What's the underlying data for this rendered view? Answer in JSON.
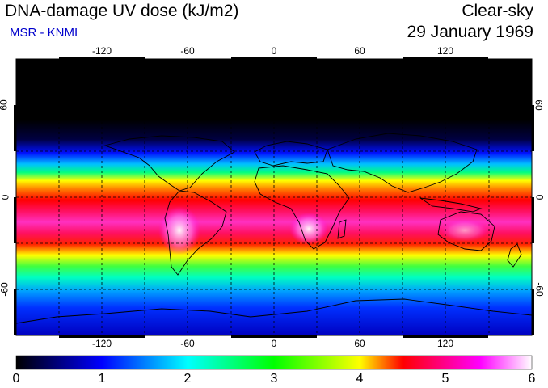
{
  "header": {
    "title": "DNA-damage UV dose (kJ/m2)",
    "subtitle": "MSR - KNMI",
    "sky_condition": "Clear-sky",
    "date": "29 January 1969"
  },
  "axes": {
    "lon_ticks": [
      "-120",
      "-60",
      "0",
      "60",
      "120"
    ],
    "lon_values": [
      -120,
      -60,
      0,
      60,
      120
    ],
    "lat_ticks": [
      "60",
      "0",
      "-60"
    ],
    "lat_values": [
      60,
      0,
      -60
    ]
  },
  "colorbar": {
    "labels": [
      "0",
      "1",
      "2",
      "3",
      "4",
      "5",
      "6"
    ],
    "min": 0,
    "max": 6,
    "colors": [
      "#000000",
      "#0000ff",
      "#00ffff",
      "#00ff00",
      "#ffff00",
      "#ff0000",
      "#ff00ff",
      "#ffffff"
    ]
  },
  "colors": {
    "subtitle": "#0000cc"
  }
}
